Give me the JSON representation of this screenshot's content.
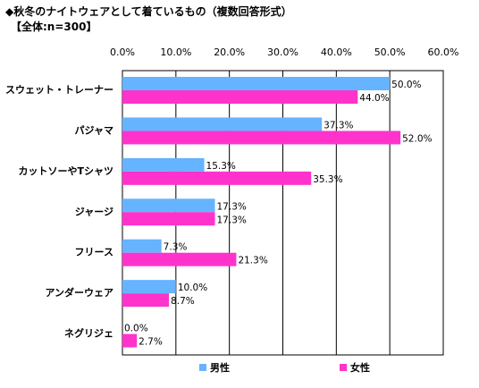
{
  "title": "◆秋冬のナイトウェアとして着ているもの（複数回答形式）",
  "subtitle": "【全体:n=300】",
  "chart_data": {
    "type": "bar",
    "orientation": "horizontal",
    "categories": [
      "スウェット・トレーナー",
      "パジャマ",
      "カットソーやTシャツ",
      "ジャージ",
      "フリース",
      "アンダーウェア",
      "ネグリジェ"
    ],
    "series": [
      {
        "name": "男性",
        "color": "#66b3ff",
        "values": [
          50.0,
          37.3,
          15.3,
          17.3,
          7.3,
          10.0,
          0.0
        ],
        "labels": [
          "50.0%",
          "37.3%",
          "15.3%",
          "17.3%",
          "7.3%",
          "10.0%",
          "0.0%"
        ]
      },
      {
        "name": "女性",
        "color": "#ff33cc",
        "values": [
          44.0,
          52.0,
          35.3,
          17.3,
          21.3,
          8.7,
          2.7
        ],
        "labels": [
          "44.0%",
          "52.0%",
          "35.3%",
          "17.3%",
          "21.3%",
          "8.7%",
          "2.7%"
        ]
      }
    ],
    "xlim": [
      0,
      60
    ],
    "xticks": [
      "0.0%",
      "10.0%",
      "20.0%",
      "30.0%",
      "40.0%",
      "50.0%",
      "60.0%"
    ],
    "xtick_values": [
      0,
      10,
      20,
      30,
      40,
      50,
      60
    ],
    "grid": "vertical",
    "legend_position": "bottom"
  }
}
